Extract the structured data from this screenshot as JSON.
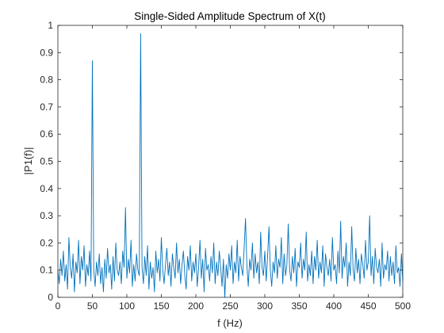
{
  "chart_data": {
    "type": "line",
    "title": "Single-Sided Amplitude Spectrum of X(t)",
    "xlabel": "f (Hz)",
    "ylabel": "|P1(f)|",
    "xlim": [
      0,
      500
    ],
    "ylim": [
      0,
      1
    ],
    "xticks": [
      0,
      50,
      100,
      150,
      200,
      250,
      300,
      350,
      400,
      450,
      500
    ],
    "yticks": [
      0,
      0.1,
      0.2,
      0.3,
      0.4,
      0.5,
      0.6,
      0.7,
      0.8,
      0.9,
      1
    ],
    "grid": false,
    "line_color": "#0072bd",
    "series": [
      {
        "x": [
          0,
          2,
          4,
          6,
          8,
          10,
          12,
          14,
          16,
          18,
          20,
          22,
          24,
          26,
          28,
          30,
          32,
          34,
          36,
          38,
          40,
          42,
          44,
          46,
          48,
          50,
          52,
          54,
          56,
          58,
          60,
          62,
          64,
          66,
          68,
          70,
          72,
          74,
          76,
          78,
          80,
          82,
          84,
          86,
          88,
          90,
          92,
          94,
          96,
          98,
          100,
          102,
          104,
          106,
          108,
          110,
          112,
          114,
          116,
          118,
          120,
          122,
          124,
          126,
          128,
          130,
          132,
          134,
          136,
          138,
          140,
          142,
          144,
          146,
          148,
          150,
          152,
          154,
          156,
          158,
          160,
          162,
          164,
          166,
          168,
          170,
          172,
          174,
          176,
          178,
          180,
          182,
          184,
          186,
          188,
          190,
          192,
          194,
          196,
          198,
          200,
          202,
          204,
          206,
          208,
          210,
          212,
          214,
          216,
          218,
          220,
          222,
          224,
          226,
          228,
          230,
          232,
          234,
          236,
          238,
          240,
          242,
          244,
          246,
          248,
          250,
          252,
          254,
          256,
          258,
          260,
          262,
          264,
          266,
          268,
          270,
          272,
          274,
          276,
          278,
          280,
          282,
          284,
          286,
          288,
          290,
          292,
          294,
          296,
          298,
          300,
          302,
          304,
          306,
          308,
          310,
          312,
          314,
          316,
          318,
          320,
          322,
          324,
          326,
          328,
          330,
          332,
          334,
          336,
          338,
          340,
          342,
          344,
          346,
          348,
          350,
          352,
          354,
          356,
          358,
          360,
          362,
          364,
          366,
          368,
          370,
          372,
          374,
          376,
          378,
          380,
          382,
          384,
          386,
          388,
          390,
          392,
          394,
          396,
          398,
          400,
          402,
          404,
          406,
          408,
          410,
          412,
          414,
          416,
          418,
          420,
          422,
          424,
          426,
          428,
          430,
          432,
          434,
          436,
          438,
          440,
          442,
          444,
          446,
          448,
          450,
          452,
          454,
          456,
          458,
          460,
          462,
          464,
          466,
          468,
          470,
          472,
          474,
          476,
          478,
          480,
          482,
          484,
          486,
          488,
          490,
          492,
          494,
          496,
          498,
          500
        ],
        "y": [
          0.1,
          0.05,
          0.14,
          0.08,
          0.17,
          0.06,
          0.12,
          0.03,
          0.22,
          0.11,
          0.07,
          0.16,
          0.02,
          0.13,
          0.09,
          0.21,
          0.05,
          0.15,
          0.1,
          0.19,
          0.04,
          0.12,
          0.08,
          0.17,
          0.06,
          0.87,
          0.1,
          0.04,
          0.13,
          0.08,
          0.16,
          0.05,
          0.11,
          0.02,
          0.14,
          0.07,
          0.18,
          0.09,
          0.12,
          0.03,
          0.15,
          0.06,
          0.2,
          0.1,
          0.08,
          0.13,
          0.05,
          0.17,
          0.11,
          0.33,
          0.07,
          0.14,
          0.09,
          0.21,
          0.04,
          0.12,
          0.06,
          0.16,
          0.1,
          0.08,
          0.97,
          0.11,
          0.05,
          0.15,
          0.08,
          0.19,
          0.03,
          0.13,
          0.07,
          0.11,
          0.02,
          0.17,
          0.09,
          0.14,
          0.06,
          0.22,
          0.1,
          0.05,
          0.12,
          0.18,
          0.08,
          0.13,
          0.04,
          0.16,
          0.11,
          0.07,
          0.2,
          0.09,
          0.14,
          0.05,
          0.12,
          0.17,
          0.08,
          0.03,
          0.15,
          0.1,
          0.19,
          0.06,
          0.13,
          0.09,
          0.16,
          0.04,
          0.11,
          0.21,
          0.07,
          0.14,
          0.02,
          0.18,
          0.1,
          0.12,
          0.06,
          0.15,
          0.09,
          0.2,
          0.05,
          0.13,
          0.08,
          0.17,
          0.11,
          0.04,
          0.14,
          0.0,
          0.12,
          0.07,
          0.16,
          0.1,
          0.19,
          0.05,
          0.13,
          0.09,
          0.21,
          0.06,
          0.15,
          0.11,
          0.08,
          0.18,
          0.29,
          0.12,
          0.04,
          0.14,
          0.1,
          0.2,
          0.07,
          0.16,
          0.09,
          0.13,
          0.05,
          0.24,
          0.11,
          0.08,
          0.17,
          0.06,
          0.15,
          0.26,
          0.1,
          0.04,
          0.13,
          0.09,
          0.19,
          0.07,
          0.14,
          0.11,
          0.22,
          0.05,
          0.16,
          0.08,
          0.12,
          0.27,
          0.1,
          0.06,
          0.15,
          0.09,
          0.18,
          0.04,
          0.13,
          0.11,
          0.2,
          0.07,
          0.14,
          0.1,
          0.24,
          0.06,
          0.12,
          0.08,
          0.17,
          0.05,
          0.15,
          0.1,
          0.21,
          0.07,
          0.13,
          0.09,
          0.19,
          0.04,
          0.16,
          0.11,
          0.08,
          0.14,
          0.06,
          0.22,
          0.1,
          0.12,
          0.05,
          0.17,
          0.09,
          0.28,
          0.07,
          0.15,
          0.11,
          0.2,
          0.04,
          0.13,
          0.08,
          0.26,
          0.1,
          0.06,
          0.18,
          0.09,
          0.14,
          0.05,
          0.16,
          0.12,
          0.07,
          0.21,
          0.1,
          0.13,
          0.3,
          0.08,
          0.15,
          0.05,
          0.18,
          0.11,
          0.09,
          0.14,
          0.04,
          0.2,
          0.07,
          0.12,
          0.1,
          0.17,
          0.06,
          0.15,
          0.08,
          0.13,
          0.05,
          0.19,
          0.09,
          0.11,
          0.04,
          0.16,
          0.06
        ]
      }
    ]
  }
}
